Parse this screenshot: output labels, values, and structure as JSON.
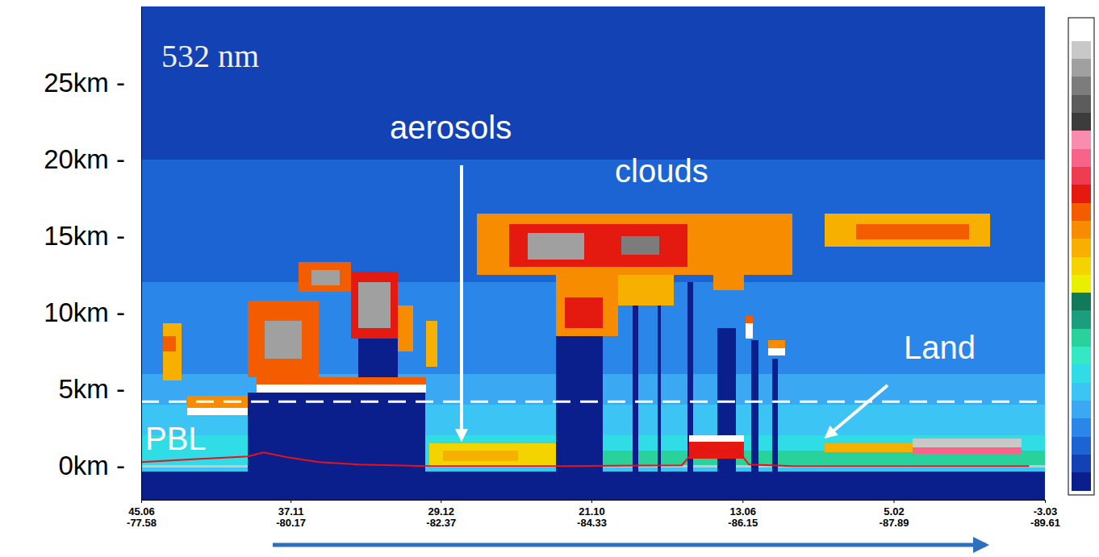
{
  "chart_data": {
    "type": "heatmap",
    "title": "532 nm",
    "annotations": [
      {
        "text": "aerosols"
      },
      {
        "text": "clouds"
      },
      {
        "text": "Land"
      },
      {
        "text": "PBL"
      }
    ],
    "xlim": [
      45.06,
      -3.03
    ],
    "xticks": [
      {
        "value": 45.06,
        "label": "45.06"
      },
      {
        "value": 37.11,
        "label": "37.11"
      },
      {
        "value": 29.12,
        "label": "29.12"
      },
      {
        "value": 21.1,
        "label": "21.10"
      },
      {
        "value": 13.06,
        "label": "13.06"
      },
      {
        "value": 5.02,
        "label": "5.02"
      },
      {
        "value": -3.03,
        "label": "-3.03"
      }
    ],
    "xtick_sublabels": [
      "-77.58",
      "-80.17",
      "-82.37",
      "-84.33",
      "-86.15",
      "-87.89",
      "-89.61"
    ],
    "ylim": [
      -2.2,
      30
    ],
    "yticks": [
      {
        "value": 0,
        "label": "0km -"
      },
      {
        "value": 5,
        "label": "5km -"
      },
      {
        "value": 10,
        "label": "10km -"
      },
      {
        "value": 15,
        "label": "15km -"
      },
      {
        "value": 20,
        "label": "20km -"
      },
      {
        "value": 25,
        "label": "25km -"
      }
    ],
    "hline": 4.2,
    "colorbar": {
      "range": [
        0,
        25
      ],
      "colors": [
        "#0b1f8c",
        "#1242b4",
        "#1c64d4",
        "#2a86e8",
        "#3aa8f2",
        "#3cc4f4",
        "#30dce6",
        "#34e8c4",
        "#28d29a",
        "#1a9e7e",
        "#107a5a",
        "#e8f000",
        "#f4d400",
        "#f8b000",
        "#f88c00",
        "#f45c00",
        "#e41a10",
        "#f03c50",
        "#f86488",
        "#fa8cb0",
        "#3c3c3c",
        "#5c5c5c",
        "#7c7c7c",
        "#a0a0a0",
        "#c8c8c8",
        "#ffffff"
      ]
    },
    "cells": [
      {
        "lat": [
          45.06,
          -3.03
        ],
        "alt": [
          20,
          30
        ],
        "value": 1
      },
      {
        "lat": [
          45.06,
          -3.03
        ],
        "alt": [
          12,
          20
        ],
        "value": 2
      },
      {
        "lat": [
          45.06,
          -3.03
        ],
        "alt": [
          6,
          12
        ],
        "value": 3
      },
      {
        "lat": [
          45.06,
          -3.03
        ],
        "alt": [
          4,
          6
        ],
        "value": 4
      },
      {
        "lat": [
          45.06,
          -3.03
        ],
        "alt": [
          2,
          4
        ],
        "value": 5
      },
      {
        "lat": [
          45.06,
          -3.03
        ],
        "alt": [
          0,
          2
        ],
        "value": 6
      },
      {
        "lat": [
          29.73,
          -3.03
        ],
        "alt": [
          0,
          1
        ],
        "value": 8
      },
      {
        "lat": [
          45.06,
          -3.03
        ],
        "alt": [
          -0.35,
          -0.1
        ],
        "value": 5
      },
      {
        "lat": [
          45.06,
          -3.03
        ],
        "alt": [
          -2.2,
          -0.35
        ],
        "value": 0
      },
      {
        "lat": [
          45.06,
          -3.03
        ],
        "alt": [
          -0.1,
          0.05
        ],
        "value": 24
      },
      {
        "lat": [
          39.39,
          29.94
        ],
        "alt": [
          -2.2,
          4.8
        ],
        "value": 0
      },
      {
        "lat": [
          33.5,
          31.4
        ],
        "alt": [
          4.8,
          8.3
        ],
        "value": 0
      },
      {
        "lat": [
          23.01,
          20.49
        ],
        "alt": [
          -2.2,
          9.5
        ],
        "value": 0
      },
      {
        "lat": [
          18.9,
          18.6
        ],
        "alt": [
          -2.2,
          12.5
        ],
        "value": 0
      },
      {
        "lat": [
          17.6,
          17.4
        ],
        "alt": [
          -2.2,
          12.5
        ],
        "value": 0
      },
      {
        "lat": [
          16.0,
          15.7
        ],
        "alt": [
          -2.2,
          12
        ],
        "value": 0
      },
      {
        "lat": [
          14.4,
          13.4
        ],
        "alt": [
          -2.2,
          9
        ],
        "value": 0
      },
      {
        "lat": [
          12.6,
          12.2
        ],
        "alt": [
          -2.2,
          8.2
        ],
        "value": 0
      },
      {
        "lat": [
          11.5,
          11.2
        ],
        "alt": [
          -2.2,
          7
        ],
        "value": 0
      },
      {
        "lat": [
          43.9,
          42.9
        ],
        "alt": [
          5.6,
          9.3
        ],
        "value": 13
      },
      {
        "lat": [
          43.9,
          43.2
        ],
        "alt": [
          7.5,
          8.5
        ],
        "value": 15
      },
      {
        "lat": [
          42.6,
          39.4
        ],
        "alt": [
          3.8,
          4.6
        ],
        "value": 14
      },
      {
        "lat": [
          42.6,
          39.4
        ],
        "alt": [
          3.3,
          3.8
        ],
        "value": 25
      },
      {
        "lat": [
          39.4,
          35.6
        ],
        "alt": [
          5.8,
          10.8
        ],
        "value": 15
      },
      {
        "lat": [
          38.5,
          36.5
        ],
        "alt": [
          7,
          9.5
        ],
        "value": 23
      },
      {
        "lat": [
          36.7,
          33.9
        ],
        "alt": [
          11.4,
          13.3
        ],
        "value": 15
      },
      {
        "lat": [
          36.0,
          34.5
        ],
        "alt": [
          11.8,
          12.8
        ],
        "value": 23
      },
      {
        "lat": [
          33.9,
          31.4
        ],
        "alt": [
          8.3,
          12.7
        ],
        "value": 16
      },
      {
        "lat": [
          33.5,
          31.8
        ],
        "alt": [
          9,
          12
        ],
        "value": 23
      },
      {
        "lat": [
          31.4,
          30.6
        ],
        "alt": [
          7.5,
          10.5
        ],
        "value": 14
      },
      {
        "lat": [
          29.9,
          29.3
        ],
        "alt": [
          6.5,
          9.5
        ],
        "value": 13
      },
      {
        "lat": [
          38.9,
          29.9
        ],
        "alt": [
          5.3,
          5.8
        ],
        "value": 15
      },
      {
        "lat": [
          38.9,
          29.9
        ],
        "alt": [
          4.8,
          5.3
        ],
        "value": 25
      },
      {
        "lat": [
          29.73,
          23.0
        ],
        "alt": [
          0.05,
          1.5
        ],
        "value": 12
      },
      {
        "lat": [
          29.0,
          25.0
        ],
        "alt": [
          0.3,
          1.0
        ],
        "value": 13
      },
      {
        "lat": [
          27.2,
          10.4
        ],
        "alt": [
          12.5,
          16.5
        ],
        "value": 14
      },
      {
        "lat": [
          25.5,
          16.0
        ],
        "alt": [
          13,
          15.8
        ],
        "value": 16
      },
      {
        "lat": [
          24.5,
          21.5
        ],
        "alt": [
          13.5,
          15.2
        ],
        "value": 23
      },
      {
        "lat": [
          19.5,
          17.5
        ],
        "alt": [
          13.8,
          15
        ],
        "value": 22
      },
      {
        "lat": [
          23.0,
          19.7
        ],
        "alt": [
          8.5,
          12.5
        ],
        "value": 14
      },
      {
        "lat": [
          22.5,
          20.5
        ],
        "alt": [
          9,
          11
        ],
        "value": 16
      },
      {
        "lat": [
          19.7,
          16.7
        ],
        "alt": [
          10.5,
          12.5
        ],
        "value": 13
      },
      {
        "lat": [
          14.6,
          13.0
        ],
        "alt": [
          11.5,
          12.7
        ],
        "value": 14
      },
      {
        "lat": [
          12.9,
          12.5
        ],
        "alt": [
          9.3,
          9.8
        ],
        "value": 15
      },
      {
        "lat": [
          12.9,
          12.5
        ],
        "alt": [
          8.3,
          9.3
        ],
        "value": 25
      },
      {
        "lat": [
          11.7,
          10.8
        ],
        "alt": [
          7.7,
          8.2
        ],
        "value": 14
      },
      {
        "lat": [
          11.7,
          10.8
        ],
        "alt": [
          7.2,
          7.7
        ],
        "value": 25
      },
      {
        "lat": [
          8.7,
          -0.1
        ],
        "alt": [
          14.3,
          16.5
        ],
        "value": 13
      },
      {
        "lat": [
          7.0,
          1.0
        ],
        "alt": [
          14.8,
          15.8
        ],
        "value": 15
      },
      {
        "lat": [
          15.9,
          13.0
        ],
        "alt": [
          0.5,
          1.6
        ],
        "value": 16
      },
      {
        "lat": [
          15.9,
          13.0
        ],
        "alt": [
          1.6,
          2.0
        ],
        "value": 25
      },
      {
        "lat": [
          8.7,
          4.0
        ],
        "alt": [
          0.9,
          1.5
        ],
        "value": 13
      },
      {
        "lat": [
          4.0,
          -1.8
        ],
        "alt": [
          0.8,
          1.2
        ],
        "value": 18
      },
      {
        "lat": [
          4.0,
          -1.8
        ],
        "alt": [
          1.2,
          1.8
        ],
        "value": 24
      }
    ],
    "series": [
      {
        "type": "line",
        "color": "#e8101a",
        "x": [
          45.06,
          41.91,
          39.39,
          38.55,
          37.29,
          35.61,
          33.51,
          29.73,
          23.01,
          16.29,
          15.45,
          14.61,
          13.35,
          12.72,
          10.41,
          -2.19
        ],
        "values": [
          0.26,
          0.47,
          0.63,
          0.89,
          0.58,
          0.26,
          0.1,
          0.0,
          0.0,
          0.05,
          1.26,
          0.9,
          1.1,
          0.1,
          0.0,
          0.0
        ]
      }
    ]
  }
}
